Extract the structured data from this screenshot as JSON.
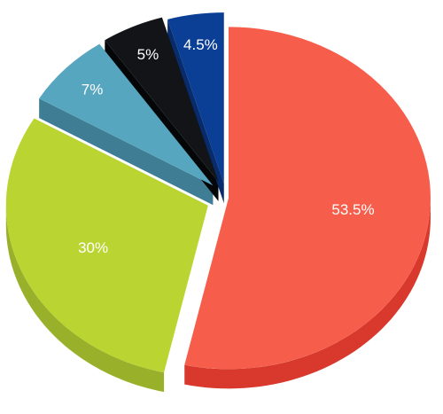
{
  "chart_data": {
    "type": "pie",
    "style": "3d-exploded",
    "title": "",
    "slices": [
      {
        "label": "53.5%",
        "value": 53.5,
        "color": "#f65e4b",
        "side_color": "#d8392c"
      },
      {
        "label": "30%",
        "value": 30,
        "color": "#bad532",
        "side_color": "#99b02a"
      },
      {
        "label": "7%",
        "value": 7,
        "color": "#57a6c0",
        "side_color": "#3e7d94"
      },
      {
        "label": "5%",
        "value": 5,
        "color": "#121417",
        "side_color": "#050608"
      },
      {
        "label": "4.5%",
        "value": 4.5,
        "color": "#0b3f96",
        "side_color": "#072b6b"
      }
    ]
  }
}
